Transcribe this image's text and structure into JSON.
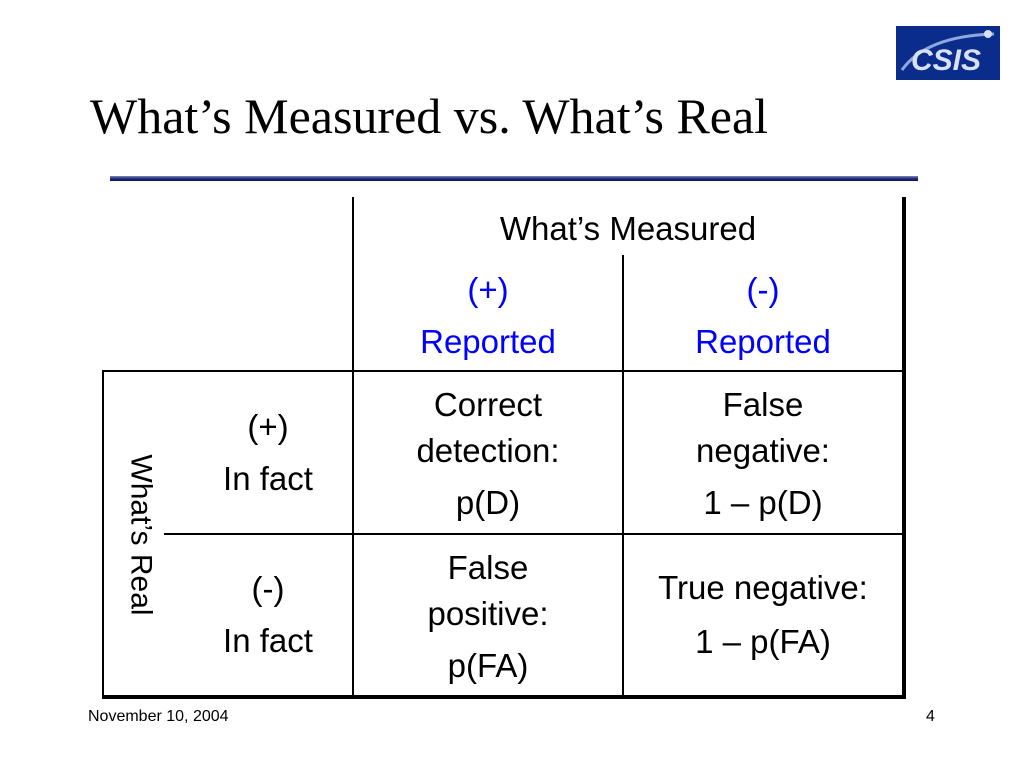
{
  "slide": {
    "title": "What’s Measured vs. What’s Real",
    "logo_text": "CSIS",
    "accent_color": "#1e2a78"
  },
  "table": {
    "col_group_header": "What’s Measured",
    "row_group_header": "What’s Real",
    "col_headers": [
      {
        "sign": "(+)",
        "label": "Reported"
      },
      {
        "sign": "(-)",
        "label": "Reported"
      }
    ],
    "row_headers": [
      {
        "sign": "(+)",
        "label": "In fact"
      },
      {
        "sign": "(-)",
        "label": "In fact"
      }
    ],
    "cells": [
      [
        {
          "line1": "Correct",
          "line2": "detection:",
          "value": "p(D)"
        },
        {
          "line1": "False",
          "line2": "negative:",
          "value": "1 – p(D)"
        }
      ],
      [
        {
          "line1": "False",
          "line2": "positive:",
          "value": "p(FA)"
        },
        {
          "line1": "True negative:",
          "line2": "",
          "value": "1 – p(FA)"
        }
      ]
    ]
  },
  "footer": {
    "date": "November 10, 2004",
    "page_number": "4"
  }
}
